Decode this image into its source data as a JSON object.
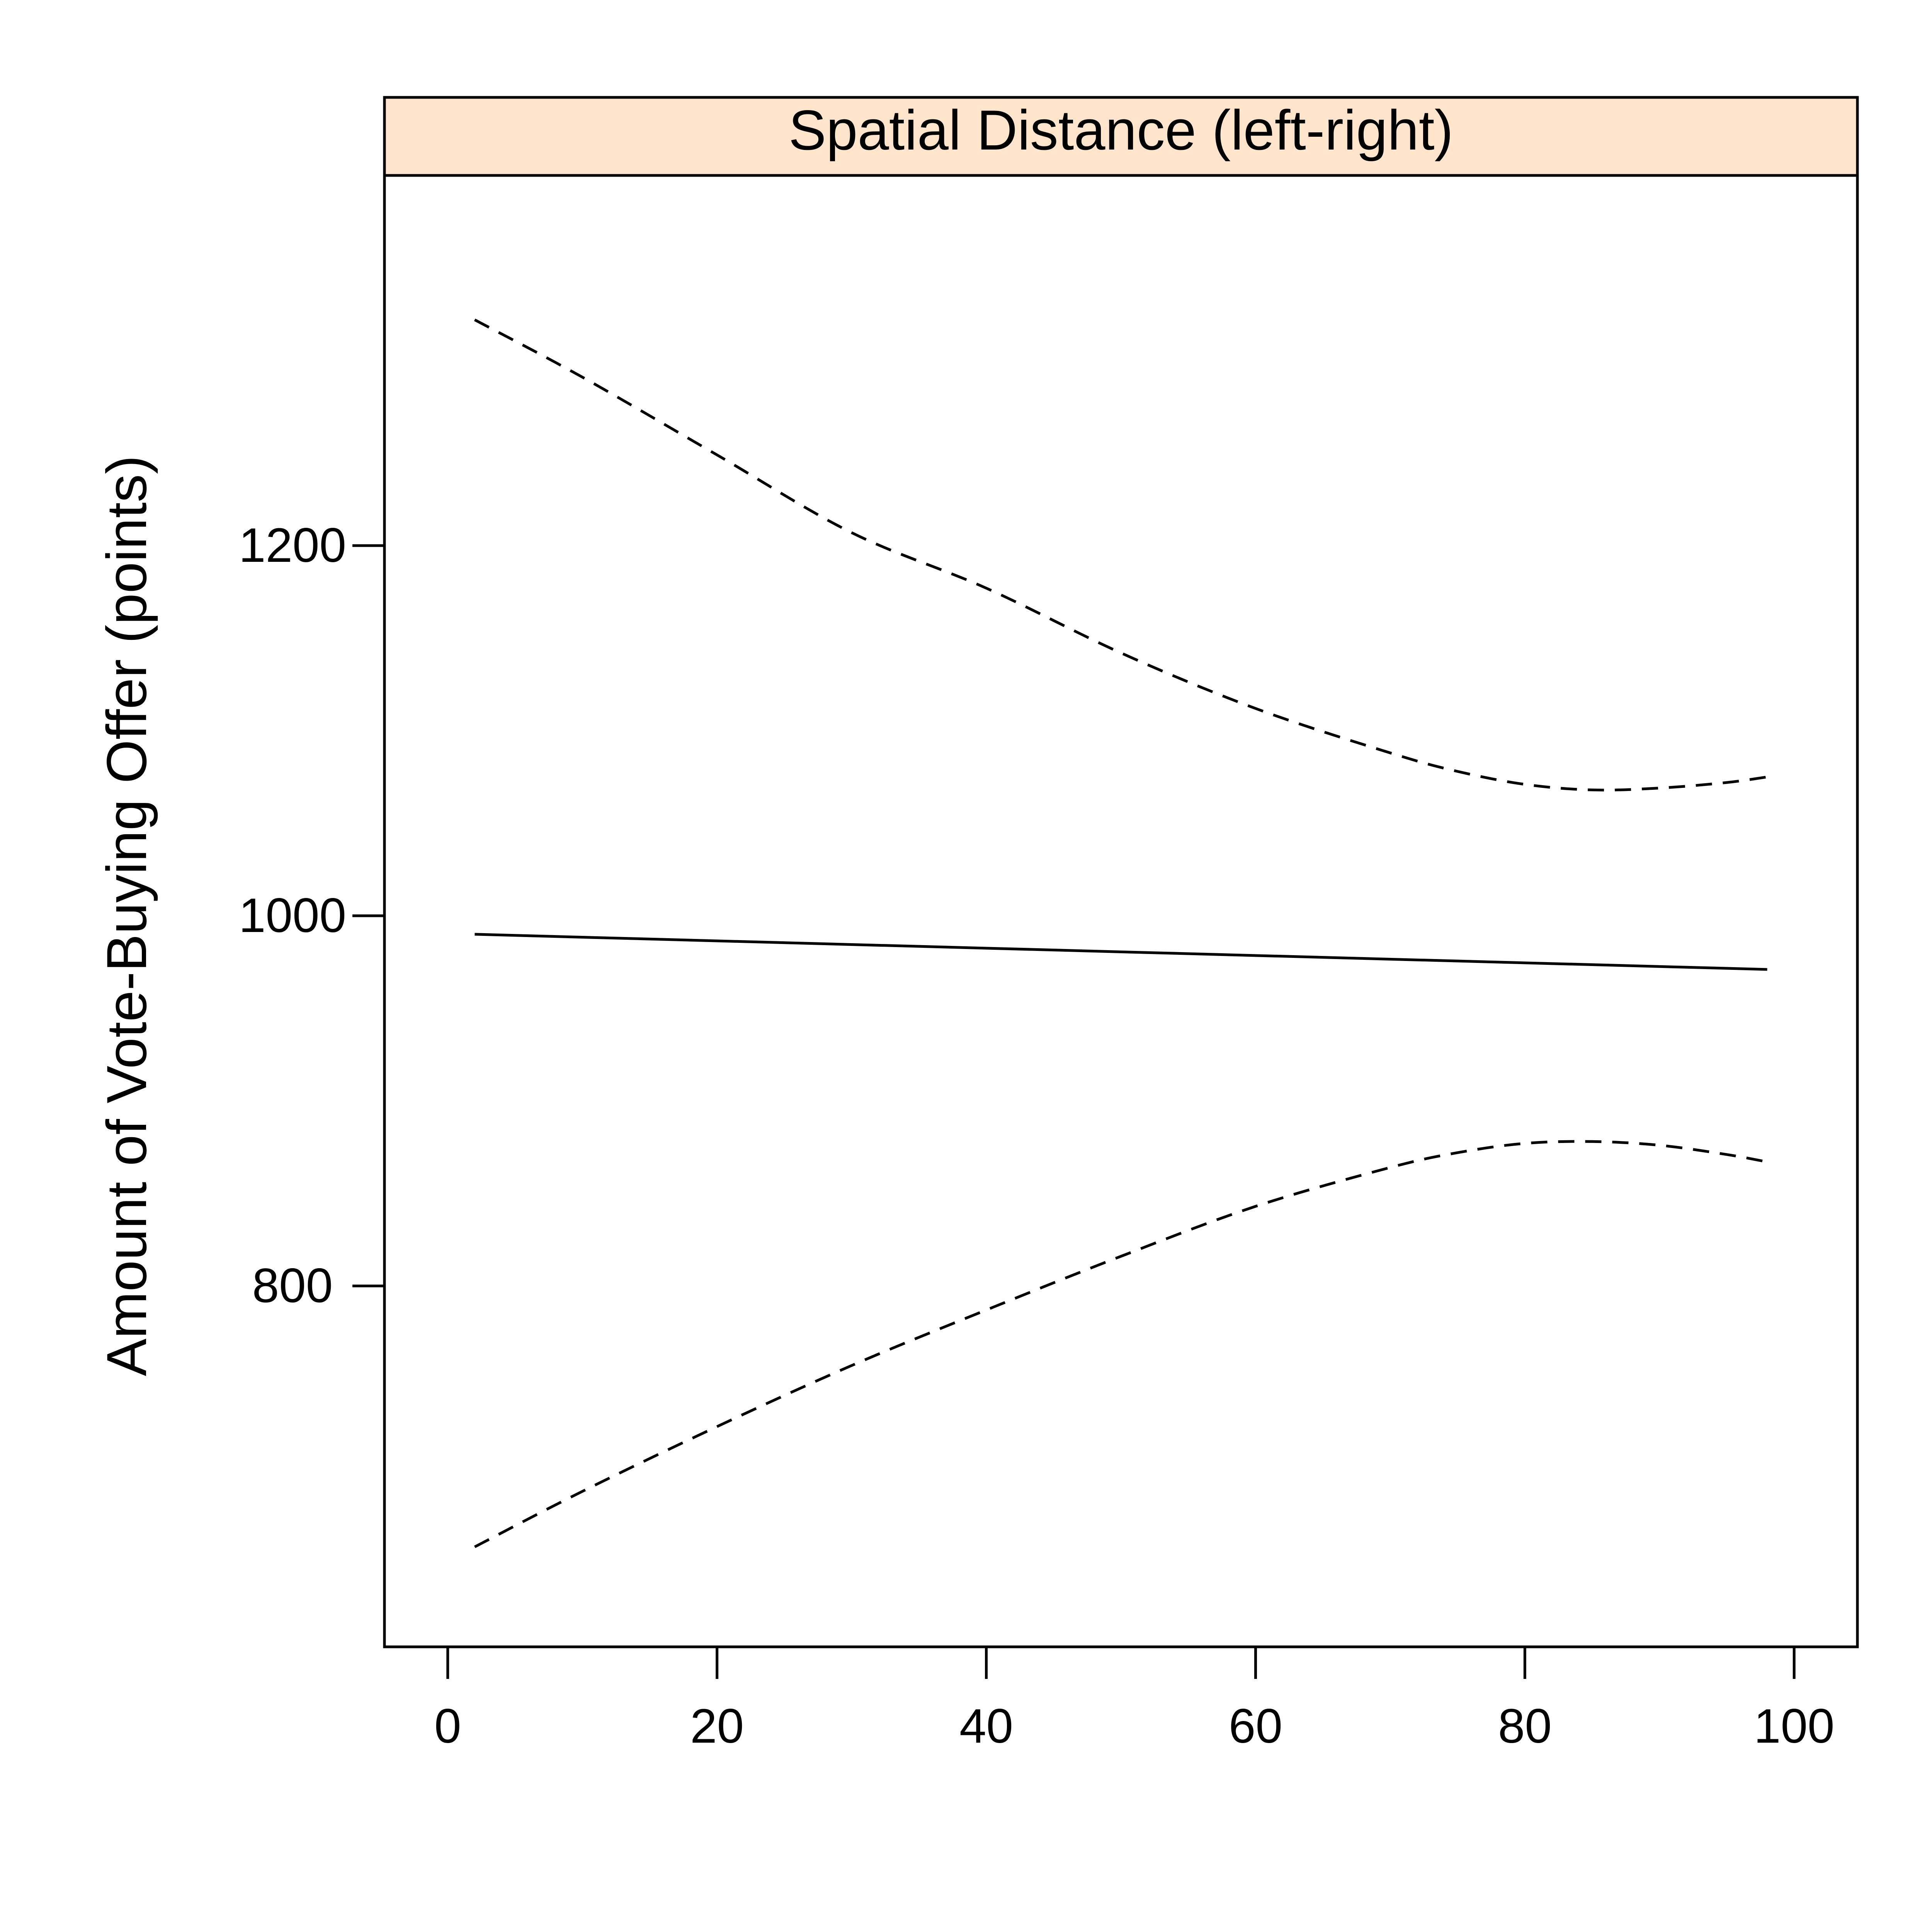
{
  "chart_data": {
    "type": "line",
    "title": "Spatial Distance (left-right)",
    "xlabel": "",
    "ylabel": "Amount of Vote-Buying Offer (points)",
    "xlim": [
      -4.7,
      104.7
    ],
    "ylim": [
      605,
      1400
    ],
    "x_ticks": [
      0,
      20,
      40,
      60,
      80,
      100
    ],
    "y_ticks": [
      800,
      1000,
      1200
    ],
    "grid": false,
    "strip_color": "#FFE5CC",
    "line_color": "#000000",
    "series": [
      {
        "style": "solid",
        "x": [
          2,
          98
        ],
        "y": [
          990,
          971
        ]
      },
      {
        "style": "dashed",
        "x": [
          2,
          10,
          20,
          30,
          40,
          50,
          60,
          70,
          75,
          80,
          85,
          90,
          95,
          98
        ],
        "y": [
          1322,
          1291,
          1249,
          1207,
          1177,
          1142,
          1112,
          1088,
          1078,
          1071,
          1068,
          1069,
          1072,
          1075
        ]
      },
      {
        "style": "dashed",
        "x": [
          2,
          10,
          20,
          30,
          40,
          50,
          60,
          70,
          75,
          80,
          85,
          90,
          95,
          98
        ],
        "y": [
          659,
          689,
          724,
          757,
          787,
          816,
          843,
          864,
          872,
          877,
          878,
          876,
          871,
          867
        ]
      }
    ]
  }
}
